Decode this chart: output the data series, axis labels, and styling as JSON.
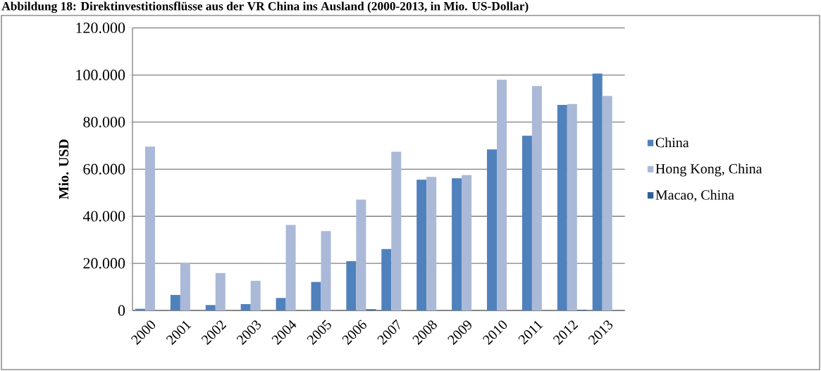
{
  "chart_data": {
    "type": "bar",
    "title": "Abbildung 18: Direktinvestitionsflüsse aus der VR China ins Ausland (2000-2013, in Mio. US-Dollar)",
    "ylabel": "Mio. USD",
    "categories": [
      "2000",
      "2001",
      "2002",
      "2003",
      "2004",
      "2005",
      "2006",
      "2007",
      "2008",
      "2009",
      "2010",
      "2011",
      "2012",
      "2013"
    ],
    "series": [
      {
        "name": "China",
        "color": "#4f81bd",
        "values": [
          700,
          6600,
          2300,
          2700,
          5300,
          12100,
          20900,
          26100,
          55500,
          56100,
          68400,
          74200,
          87300,
          100600
        ]
      },
      {
        "name": "Hong Kong, China",
        "color": "#aab9d7",
        "values": [
          69600,
          20100,
          15900,
          12600,
          36300,
          33700,
          47100,
          67400,
          56700,
          57500,
          98000,
          95300,
          87700,
          91100
        ]
      },
      {
        "name": "Macao, China",
        "color": "#2f5f98",
        "values": [
          null,
          null,
          null,
          null,
          null,
          null,
          500,
          null,
          null,
          null,
          null,
          null,
          300,
          null
        ]
      }
    ],
    "ylim": [
      0,
      120000
    ],
    "yticks": [
      {
        "value": 0,
        "label": "0"
      },
      {
        "value": 20000,
        "label": "20.000"
      },
      {
        "value": 40000,
        "label": "40.000"
      },
      {
        "value": 60000,
        "label": "60.000"
      },
      {
        "value": 80000,
        "label": "80.000"
      },
      {
        "value": 100000,
        "label": "100.000"
      },
      {
        "value": 120000,
        "label": "120.000"
      }
    ],
    "grid": "y",
    "legend": "right"
  }
}
